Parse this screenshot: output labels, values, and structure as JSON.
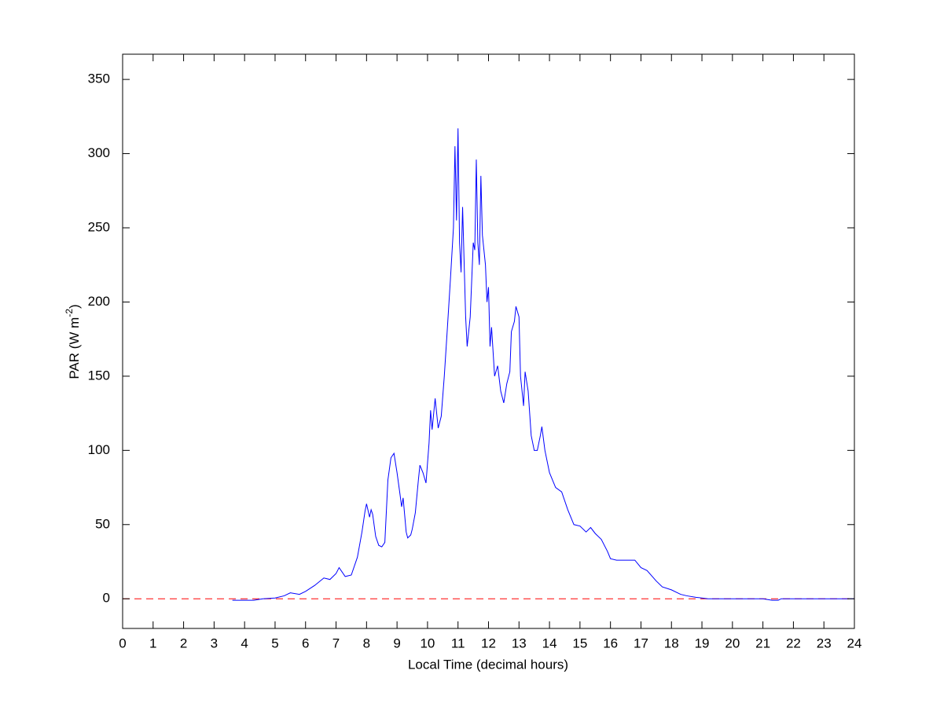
{
  "chart_data": {
    "type": "line",
    "xlabel": "Local Time (decimal hours)",
    "ylabel": {
      "text": "PAR (W m",
      "sup": "-2",
      "tail": ")"
    },
    "xlim": [
      0,
      24
    ],
    "ylim": [
      -20,
      367
    ],
    "xticks": [
      0,
      1,
      2,
      3,
      4,
      5,
      6,
      7,
      8,
      9,
      10,
      11,
      12,
      13,
      14,
      15,
      16,
      17,
      18,
      19,
      20,
      21,
      22,
      23,
      24
    ],
    "yticks": [
      0,
      50,
      100,
      150,
      200,
      250,
      300,
      350
    ],
    "grid": false,
    "reference_line": {
      "y": 0,
      "color": "#ff0000",
      "dashed": true
    },
    "series": [
      {
        "color": "#0000ff",
        "x": [
          3.6,
          4.0,
          4.3,
          4.6,
          5.0,
          5.3,
          5.5,
          5.8,
          6.0,
          6.3,
          6.6,
          6.8,
          7.0,
          7.1,
          7.3,
          7.5,
          7.7,
          7.85,
          7.95,
          8.0,
          8.1,
          8.15,
          8.2,
          8.3,
          8.4,
          8.5,
          8.6,
          8.7,
          8.8,
          8.9,
          9.0,
          9.1,
          9.15,
          9.2,
          9.3,
          9.35,
          9.45,
          9.5,
          9.6,
          9.7,
          9.75,
          9.85,
          9.95,
          10.05,
          10.1,
          10.15,
          10.25,
          10.35,
          10.45,
          10.55,
          10.65,
          10.75,
          10.85,
          10.9,
          10.95,
          11.0,
          11.05,
          11.1,
          11.15,
          11.25,
          11.3,
          11.4,
          11.5,
          11.55,
          11.6,
          11.65,
          11.7,
          11.75,
          11.8,
          11.9,
          11.95,
          12.0,
          12.05,
          12.1,
          12.2,
          12.3,
          12.4,
          12.5,
          12.6,
          12.7,
          12.75,
          12.85,
          12.9,
          13.0,
          13.05,
          13.15,
          13.2,
          13.3,
          13.4,
          13.5,
          13.6,
          13.7,
          13.75,
          13.85,
          14.0,
          14.2,
          14.4,
          14.6,
          14.8,
          15.0,
          15.2,
          15.35,
          15.5,
          15.7,
          15.9,
          16.0,
          16.2,
          16.5,
          16.8,
          17.0,
          17.2,
          17.5,
          17.7,
          18.0,
          18.3,
          18.5,
          18.8,
          19.2,
          20.0,
          21.0,
          21.3,
          21.5,
          21.6,
          24
        ],
        "values": [
          -1,
          -1,
          -1,
          0,
          0.5,
          2,
          4,
          3,
          5,
          9,
          14,
          13,
          17,
          21,
          15,
          16,
          28,
          45,
          59,
          64,
          55,
          60,
          57,
          42,
          36,
          35,
          38,
          80,
          95,
          98,
          85,
          70,
          62,
          68,
          45,
          41,
          43,
          47,
          58,
          80,
          90,
          85,
          78,
          105,
          127,
          114,
          135,
          115,
          123,
          150,
          182,
          215,
          250,
          305,
          255,
          317,
          240,
          220,
          264,
          190,
          170,
          190,
          240,
          235,
          296,
          240,
          225,
          285,
          245,
          225,
          200,
          210,
          170,
          183,
          150,
          157,
          140,
          132,
          145,
          153,
          180,
          187,
          197,
          190,
          150,
          130,
          153,
          140,
          110,
          100,
          100,
          110,
          116,
          100,
          85,
          75,
          72,
          60,
          50,
          49,
          45,
          48,
          44,
          40,
          32,
          27,
          26,
          26,
          26,
          21,
          19,
          12,
          8,
          6,
          3,
          2,
          1,
          0,
          0,
          0,
          -1,
          -1,
          0,
          0
        ]
      }
    ]
  }
}
